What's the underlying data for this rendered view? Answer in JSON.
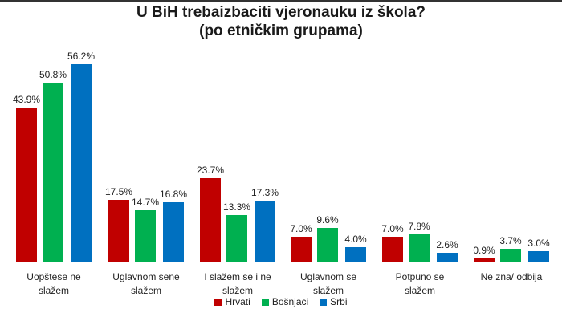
{
  "title": {
    "line1": "U BiH trebaizbaciti vjeronauku iz škola?",
    "line2": "(po etničkim grupama)"
  },
  "legend": [
    {
      "label": "Hrvati",
      "color": "#C00000"
    },
    {
      "label": "Bošnjaci",
      "color": "#00B050"
    },
    {
      "label": "Srbi",
      "color": "#0070C0"
    }
  ],
  "chart_data": {
    "type": "bar",
    "title": "U BiH trebaizbaciti vjeronauku iz škola? (po etničkim grupama)",
    "xlabel": "",
    "ylabel": "",
    "ylim": [
      0,
      60
    ],
    "grid": false,
    "legend_position": "bottom",
    "categories": [
      "Uopšte se ne slažem",
      "Uglavnom se ne slažem",
      "I slažem se i ne slažem",
      "Uglavnom se slažem",
      "Potpuno se slažem",
      "Ne zna/ odbija"
    ],
    "category_lines": [
      [
        "Uopštese ne",
        "slažem"
      ],
      [
        "Uglavnom sene",
        "slažem"
      ],
      [
        "I slažem se i ne",
        "slažem"
      ],
      [
        "Uglavnom se",
        "slažem"
      ],
      [
        "Potpuno se",
        "slažem"
      ],
      [
        "Ne zna/ odbija",
        ""
      ]
    ],
    "series": [
      {
        "name": "Hrvati",
        "color": "#C00000",
        "values": [
          43.9,
          17.5,
          23.7,
          7.0,
          7.0,
          0.9
        ],
        "labels": [
          "43.9%",
          "17.5%",
          "23.7%",
          "7.0%",
          "7.0%",
          "0.9%"
        ]
      },
      {
        "name": "Bošnjaci",
        "color": "#00B050",
        "values": [
          50.8,
          14.7,
          13.3,
          9.6,
          7.8,
          3.7
        ],
        "labels": [
          "50.8%",
          "14.7%",
          "13.3%",
          "9.6%",
          "7.8%",
          "3.7%"
        ]
      },
      {
        "name": "Srbi",
        "color": "#0070C0",
        "values": [
          56.2,
          16.8,
          17.3,
          4.0,
          2.6,
          3.0
        ],
        "labels": [
          "56.2%",
          "16.8%",
          "17.3%",
          "4.0%",
          "2.6%",
          "3.0%"
        ]
      }
    ]
  }
}
